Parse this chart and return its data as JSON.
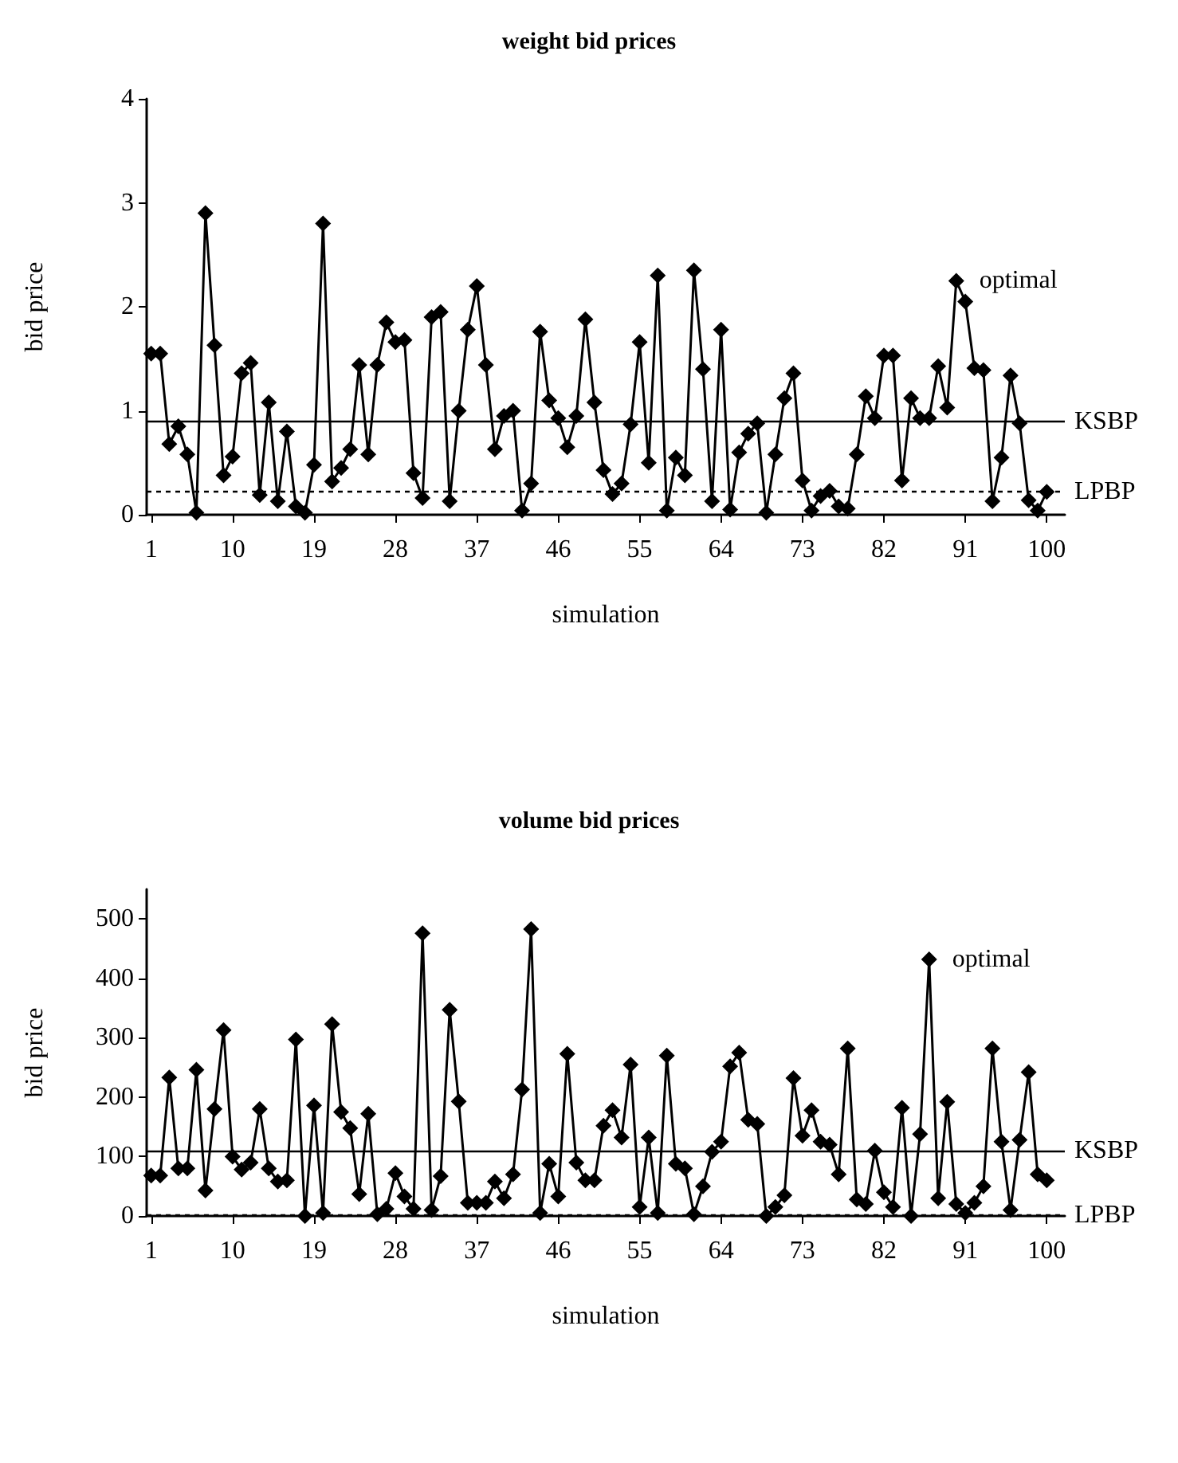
{
  "chart_data": [
    {
      "type": "line",
      "title": "weight bid prices",
      "xlabel": "simulation",
      "ylabel": "bid price",
      "marker": "diamond",
      "x": [
        1,
        2,
        3,
        4,
        5,
        6,
        7,
        8,
        9,
        10,
        11,
        12,
        13,
        14,
        15,
        16,
        17,
        18,
        19,
        20,
        21,
        22,
        23,
        24,
        25,
        26,
        27,
        28,
        29,
        30,
        31,
        32,
        33,
        34,
        35,
        36,
        37,
        38,
        39,
        40,
        41,
        42,
        43,
        44,
        45,
        46,
        47,
        48,
        49,
        50,
        51,
        52,
        53,
        54,
        55,
        56,
        57,
        58,
        59,
        60,
        61,
        62,
        63,
        64,
        65,
        66,
        67,
        68,
        69,
        70,
        71,
        72,
        73,
        74,
        75,
        76,
        77,
        78,
        79,
        80,
        81,
        82,
        83,
        84,
        85,
        86,
        87,
        88,
        89,
        90,
        91,
        92,
        93,
        94,
        95,
        96,
        97,
        98,
        99,
        100
      ],
      "xlim": [
        0.5,
        102
      ],
      "xticks": [
        1,
        10,
        19,
        28,
        37,
        46,
        55,
        64,
        73,
        82,
        91,
        100
      ],
      "ylim": [
        0,
        4
      ],
      "yticks": [
        0,
        1,
        2,
        3,
        4
      ],
      "annotations": [
        {
          "text": "optimal",
          "x": 90,
          "y": 2.25
        }
      ],
      "series": [
        {
          "color": "#000000",
          "values": [
            1.55,
            1.55,
            0.68,
            0.85,
            0.58,
            0.02,
            2.9,
            1.63,
            0.38,
            0.56,
            1.36,
            1.46,
            0.19,
            1.08,
            0.13,
            0.8,
            0.08,
            0.02,
            0.48,
            2.8,
            0.32,
            0.45,
            0.63,
            1.44,
            0.58,
            1.44,
            1.85,
            1.66,
            1.68,
            0.4,
            0.16,
            1.9,
            1.95,
            0.13,
            1.0,
            1.78,
            2.2,
            1.44,
            0.63,
            0.95,
            1.0,
            0.04,
            0.3,
            1.76,
            1.1,
            0.93,
            0.65,
            0.95,
            1.88,
            1.08,
            0.43,
            0.2,
            0.3,
            0.87,
            1.66,
            0.5,
            2.3,
            0.04,
            0.55,
            0.38,
            2.35,
            1.4,
            0.13,
            1.78,
            0.05,
            0.6,
            0.78,
            0.88,
            0.02,
            0.58,
            1.12,
            1.36,
            0.33,
            0.04,
            0.18,
            0.23,
            0.08,
            0.06,
            0.58,
            1.14,
            0.93,
            1.53,
            1.53,
            0.33,
            1.12,
            0.93,
            0.93,
            1.43,
            1.03,
            2.25,
            2.05,
            1.41,
            1.39,
            0.13,
            0.55,
            1.34,
            0.88,
            0.14,
            0.04,
            0.22
          ]
        }
      ],
      "ref_lines": [
        {
          "axis": "y",
          "value": 0.9,
          "label": "KSBP",
          "color": "#000000",
          "line_style": "solid"
        },
        {
          "axis": "y",
          "value": 0.22,
          "label": "LPBP",
          "color": "#000000",
          "line_style": "dashed"
        }
      ]
    },
    {
      "type": "line",
      "title": "volume bid prices",
      "xlabel": "simulation",
      "ylabel": "bid price",
      "marker": "diamond",
      "x": [
        1,
        2,
        3,
        4,
        5,
        6,
        7,
        8,
        9,
        10,
        11,
        12,
        13,
        14,
        15,
        16,
        17,
        18,
        19,
        20,
        21,
        22,
        23,
        24,
        25,
        26,
        27,
        28,
        29,
        30,
        31,
        32,
        33,
        34,
        35,
        36,
        37,
        38,
        39,
        40,
        41,
        42,
        43,
        44,
        45,
        46,
        47,
        48,
        49,
        50,
        51,
        52,
        53,
        54,
        55,
        56,
        57,
        58,
        59,
        60,
        61,
        62,
        63,
        64,
        65,
        66,
        67,
        68,
        69,
        70,
        71,
        72,
        73,
        74,
        75,
        76,
        77,
        78,
        79,
        80,
        81,
        82,
        83,
        84,
        85,
        86,
        87,
        88,
        89,
        90,
        91,
        92,
        93,
        94,
        95,
        96,
        97,
        98,
        99,
        100
      ],
      "xlim": [
        0.5,
        102
      ],
      "xticks": [
        1,
        10,
        19,
        28,
        37,
        46,
        55,
        64,
        73,
        82,
        91,
        100
      ],
      "ylim": [
        0,
        550
      ],
      "yticks": [
        0,
        100,
        200,
        300,
        400,
        500
      ],
      "annotations": [
        {
          "text": "optimal",
          "x": 87,
          "y": 432
        }
      ],
      "series": [
        {
          "color": "#000000",
          "values": [
            68,
            68,
            233,
            80,
            80,
            246,
            43,
            180,
            313,
            100,
            78,
            90,
            180,
            80,
            58,
            60,
            297,
            0,
            186,
            5,
            323,
            175,
            148,
            37,
            172,
            3,
            12,
            72,
            33,
            12,
            476,
            10,
            67,
            347,
            193,
            22,
            22,
            22,
            58,
            30,
            70,
            213,
            483,
            5,
            88,
            33,
            273,
            90,
            60,
            60,
            152,
            178,
            132,
            255,
            15,
            132,
            5,
            270,
            88,
            80,
            3,
            50,
            108,
            125,
            252,
            275,
            162,
            155,
            0,
            15,
            35,
            232,
            135,
            178,
            125,
            120,
            70,
            282,
            28,
            20,
            110,
            40,
            15,
            182,
            0,
            138,
            432,
            30,
            192,
            20,
            5,
            22,
            50,
            282,
            125,
            10,
            128,
            242,
            70,
            60
          ]
        }
      ],
      "ref_lines": [
        {
          "axis": "y",
          "value": 110,
          "label": "KSBP",
          "color": "#000000",
          "line_style": "solid"
        },
        {
          "axis": "y",
          "value": 1,
          "label": "LPBP",
          "color": "#000000",
          "line_style": "dashed"
        }
      ]
    }
  ]
}
